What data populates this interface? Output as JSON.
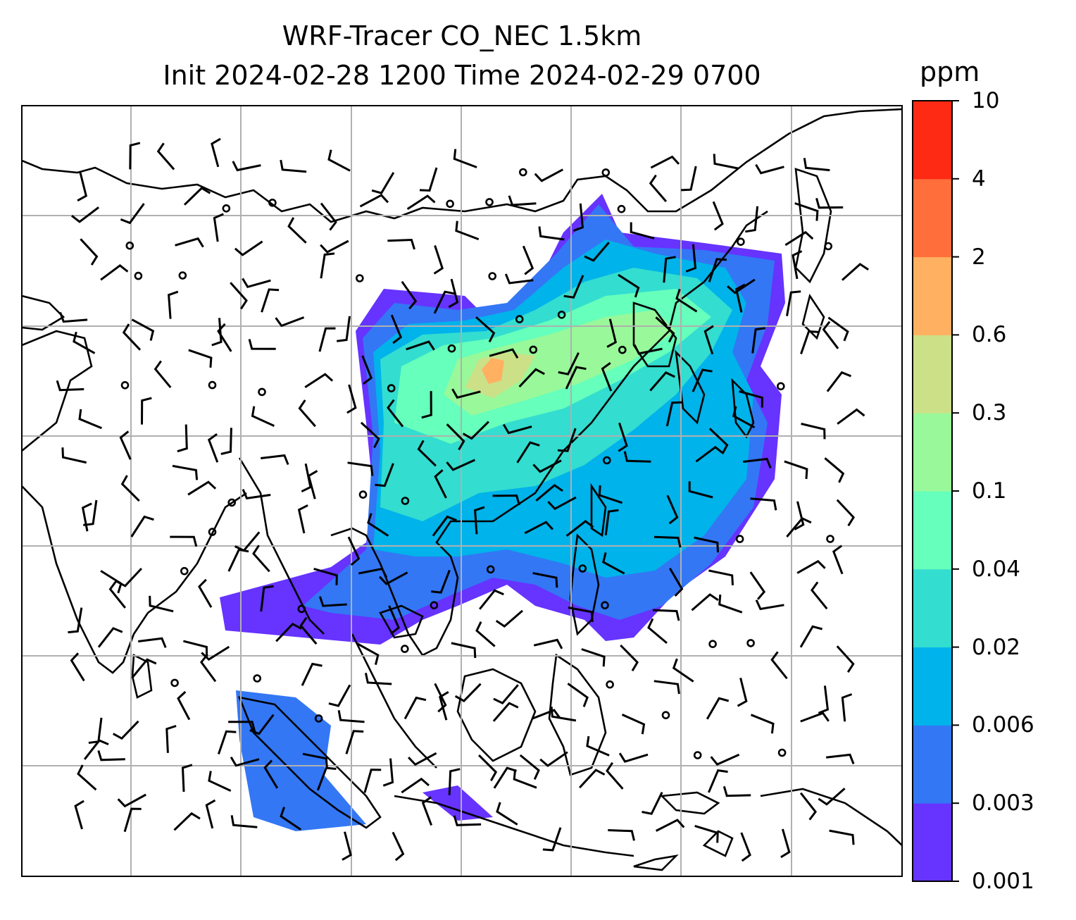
{
  "title": {
    "line1": "WRF-Tracer CO_NEC 1.5km",
    "line2": "Init 2024-02-28 1200 Time 2024-02-29 0700"
  },
  "colorbar": {
    "unit": "ppm",
    "levels": [
      "0.001",
      "0.003",
      "0.006",
      "0.02",
      "0.04",
      "0.1",
      "0.3",
      "0.6",
      "2",
      "4",
      "10"
    ],
    "colors": [
      "#6633ff",
      "#3377f5",
      "#00b3ea",
      "#33ddd0",
      "#66ffbb",
      "#99f899",
      "#cce088",
      "#ffb061",
      "#ff6e3b",
      "#ff2a14"
    ]
  },
  "map": {
    "projection": "Mercator",
    "gridlines": true,
    "coastlines": true,
    "wind_barbs": true,
    "field": "CO_NEC tracer concentration",
    "colors": {
      "land_outline": "#000000",
      "grid": "#b0b0b0",
      "barb": "#000000"
    }
  }
}
